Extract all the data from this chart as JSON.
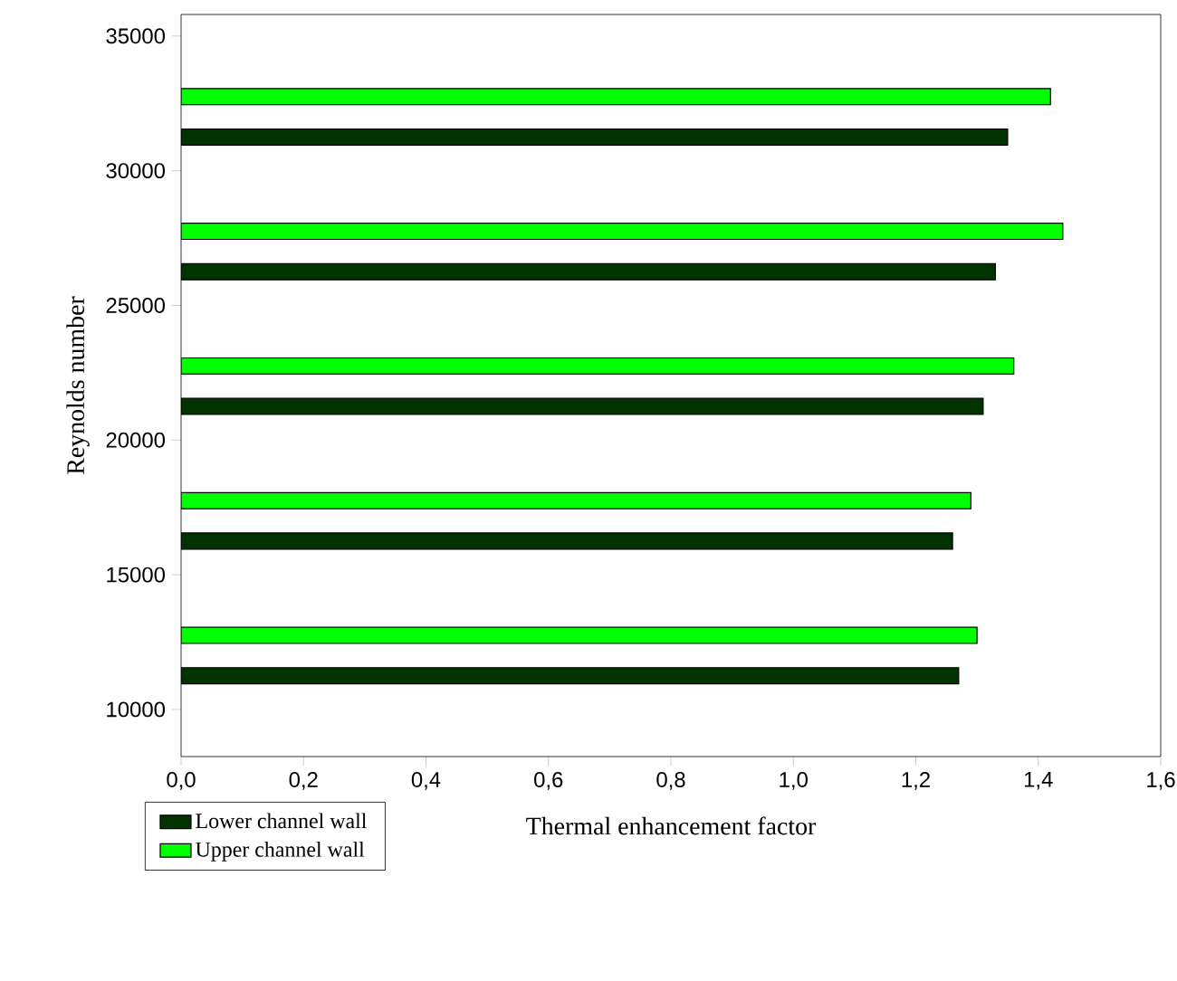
{
  "chart_data": {
    "type": "bar",
    "orientation": "horizontal",
    "xlabel": "Thermal enhancement factor",
    "ylabel": "Reynolds number",
    "xlim": [
      0,
      1.6
    ],
    "xticks": [
      {
        "value": 0,
        "label": "0,0"
      },
      {
        "value": 0.2,
        "label": "0,2"
      },
      {
        "value": 0.4,
        "label": "0,4"
      },
      {
        "value": 0.6,
        "label": "0,6"
      },
      {
        "value": 0.8,
        "label": "0,8"
      },
      {
        "value": 1.0,
        "label": "1,0"
      },
      {
        "value": 1.2,
        "label": "1,2"
      },
      {
        "value": 1.4,
        "label": "1,4"
      },
      {
        "value": 1.6,
        "label": "1,6"
      }
    ],
    "ylim": [
      8250,
      35800
    ],
    "yticks": [
      10000,
      15000,
      20000,
      25000,
      30000,
      35000
    ],
    "series": [
      {
        "name": "Lower channel wall",
        "color": "#003300",
        "x": [
          11250,
          16250,
          21250,
          26250,
          31250
        ],
        "values": [
          1.27,
          1.26,
          1.31,
          1.33,
          1.35
        ]
      },
      {
        "name": "Upper channel wall",
        "color": "#00ff00",
        "x": [
          12750,
          17750,
          22750,
          27750,
          32750
        ],
        "values": [
          1.3,
          1.29,
          1.36,
          1.44,
          1.42
        ]
      }
    ],
    "legend": "bottom left",
    "grid": false
  }
}
